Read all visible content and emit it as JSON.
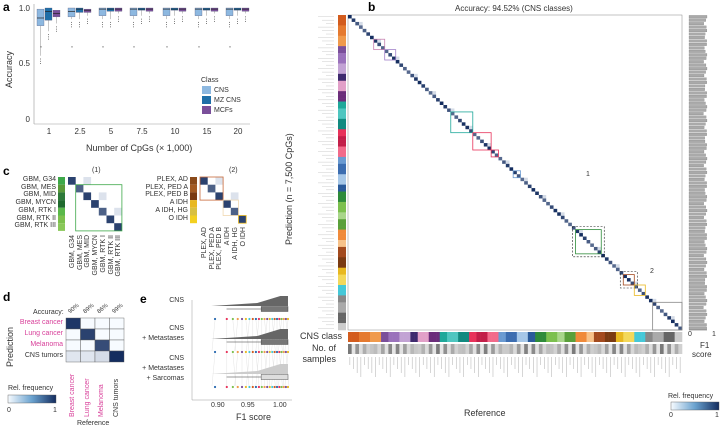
{
  "panels": {
    "a": "a",
    "b": "b",
    "c": "c",
    "d": "d",
    "e": "e"
  },
  "panel_a": {
    "chart_data": {
      "type": "box",
      "ylabel": "Accuracy",
      "xlabel": "Number of CpGs (× 1,000)",
      "ylim": [
        0,
        1
      ],
      "yticks": [
        "0",
        "0.5",
        "1.0"
      ],
      "categories": [
        "1",
        "2.5",
        "5",
        "7.5",
        "10",
        "15",
        "20"
      ],
      "legend_title": "Class",
      "series": [
        {
          "name": "CNS",
          "color": "#8db8e0",
          "median": [
            0.91,
            0.97,
            0.99,
            0.99,
            0.99,
            0.99,
            0.99
          ],
          "q1": [
            0.84,
            0.92,
            0.93,
            0.93,
            0.93,
            0.93,
            0.93
          ],
          "q3": [
            0.99,
            1.0,
            1.0,
            1.0,
            1.0,
            1.0,
            1.0
          ],
          "low": [
            0.57,
            0.9,
            0.9,
            0.9,
            0.9,
            0.9,
            0.9
          ]
        },
        {
          "name": "MZ CNS",
          "color": "#1f6fa8",
          "median": [
            0.97,
            0.99,
            0.99,
            0.99,
            0.99,
            0.99,
            0.99
          ],
          "q1": [
            0.89,
            0.96,
            0.97,
            0.98,
            0.98,
            0.98,
            0.98
          ],
          "q3": [
            1.0,
            1.0,
            1.0,
            1.0,
            1.0,
            1.0,
            1.0
          ],
          "low": [
            0.79,
            0.9,
            0.9,
            0.93,
            0.93,
            0.93,
            0.93
          ]
        },
        {
          "name": "MCFs",
          "color": "#7a4f9a",
          "median": [
            0.95,
            0.98,
            0.99,
            0.99,
            0.99,
            0.99,
            0.99
          ],
          "q1": [
            0.92,
            0.96,
            0.97,
            0.97,
            0.97,
            0.97,
            0.97
          ],
          "q3": [
            0.98,
            0.99,
            1.0,
            1.0,
            1.0,
            1.0,
            1.0
          ],
          "low": [
            0.86,
            0.93,
            0.95,
            0.95,
            0.95,
            0.95,
            0.95
          ]
        }
      ]
    }
  },
  "panel_b": {
    "title": "Accuracy: 94.52% (CNS classes)",
    "ylabel": "Prediction (n = 7,500 CpGs)",
    "xlabel": "Reference",
    "strip1": "CNS class",
    "strip2_line1": "No. of",
    "strip2_line2": "samples",
    "f1_label_line1": "F1",
    "f1_label_line2": "score",
    "f1_ticks": [
      "0",
      "1"
    ],
    "colorbar_label": "Rel. frequency",
    "colorbar_ticks": [
      "0",
      "1"
    ],
    "box_labels": [
      "1",
      "2"
    ],
    "n_classes": 91
  },
  "panel_c": {
    "sub1": {
      "title": "(1)",
      "labels": [
        "GBM, G34",
        "GBM, MES",
        "GBM, MID",
        "GBM, MYCN",
        "GBM, RTK I",
        "GBM, RTK II",
        "GBM, RTK III"
      ]
    },
    "sub2": {
      "title": "(2)",
      "labels": [
        "PLEX, AD",
        "PLEX, PED A",
        "PLEX, PED B",
        "A IDH",
        "A IDH, HG",
        "O IDH"
      ]
    }
  },
  "panel_d": {
    "accuracy_label": "Accuracy:",
    "accuracies": [
      "90%",
      "89%",
      "86%",
      "99%"
    ],
    "rows": [
      "Breast cancer",
      "Lung cancer",
      "Melanoma",
      "CNS tumors"
    ],
    "ylabel": "Prediction",
    "xlabel": "Reference",
    "colorbar_label": "Rel. frequency",
    "colorbar_ticks": [
      "0",
      "1"
    ],
    "matrix": [
      [
        0.95,
        0,
        0,
        0
      ],
      [
        0,
        0.9,
        0,
        0
      ],
      [
        0,
        0,
        0.85,
        0
      ],
      [
        0.1,
        0.1,
        0.15,
        1.0
      ]
    ]
  },
  "panel_e": {
    "groups": [
      [
        "CNS"
      ],
      [
        "CNS",
        "+ Metastases"
      ],
      [
        "CNS",
        "+ Metastases",
        "+ Sarcomas"
      ]
    ],
    "xlabel": "F1 score",
    "xticks": [
      "0.90",
      "0.95",
      "1.00"
    ],
    "xlim": [
      0.875,
      1.0
    ]
  },
  "colors": {
    "accent": "#1f3a6e",
    "pink": "#d8409a"
  }
}
